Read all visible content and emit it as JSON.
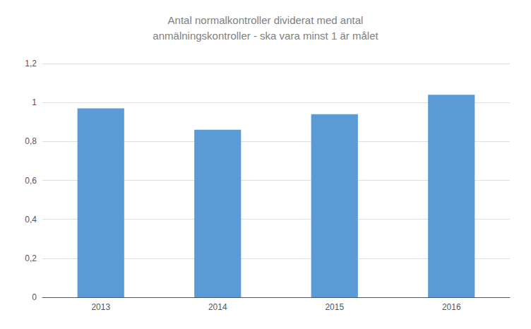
{
  "chart_data": {
    "type": "bar",
    "title": "Antal normalkontroller dividerat med antal\nanmälningskontroller - ska vara minst 1 är målet",
    "categories": [
      "2013",
      "2014",
      "2015",
      "2016"
    ],
    "values": [
      0.97,
      0.86,
      0.94,
      1.04
    ],
    "color": "#5b9bd5",
    "ylim": [
      0,
      1.2
    ],
    "yticks": [
      0,
      {
        "value": 0.2,
        "label": "0,2"
      },
      {
        "value": 0.4,
        "label": "0,4"
      },
      {
        "value": 0.6,
        "label": "0,6"
      },
      {
        "value": 0.8,
        "label": "0,8"
      },
      1,
      {
        "value": 1.2,
        "label": "1,2"
      }
    ],
    "grid": true
  }
}
